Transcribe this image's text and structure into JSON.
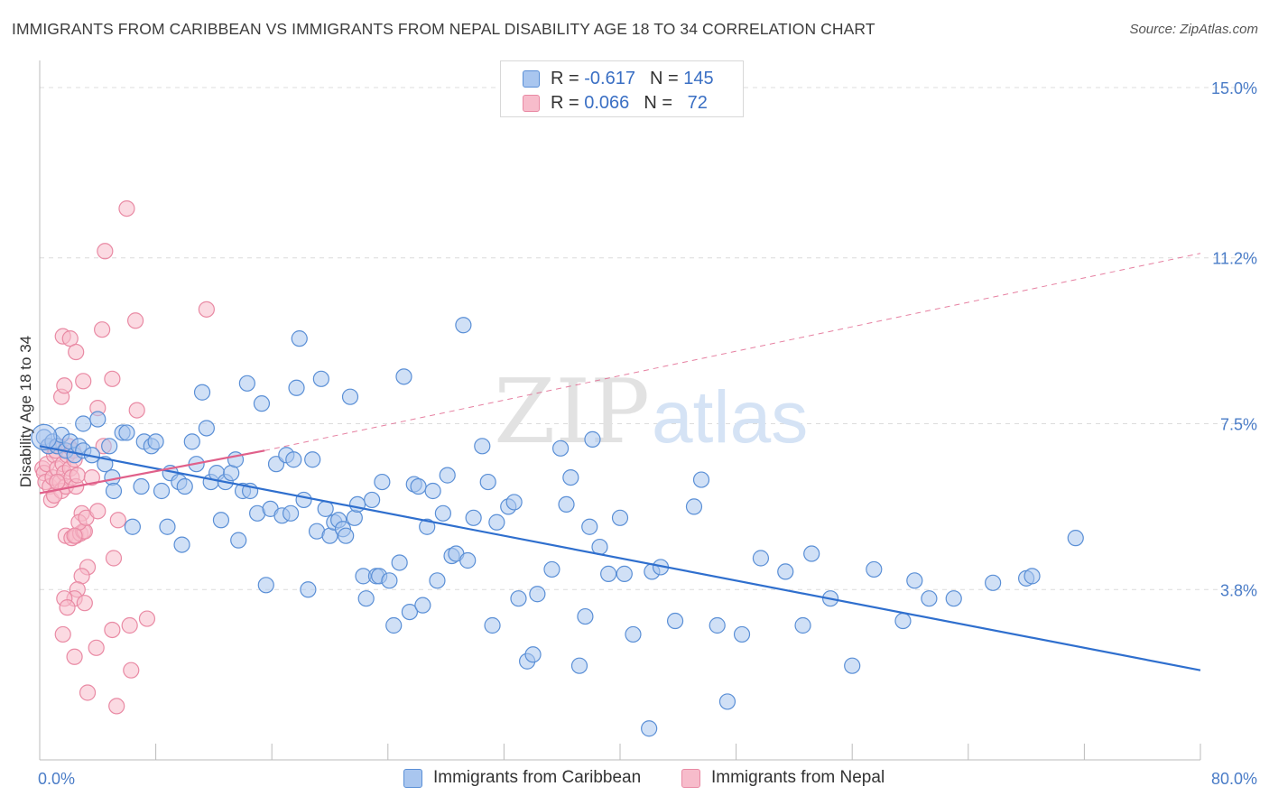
{
  "header": {
    "title": "IMMIGRANTS FROM CARIBBEAN VS IMMIGRANTS FROM NEPAL DISABILITY AGE 18 TO 34 CORRELATION CHART",
    "source": "Source: ZipAtlas.com"
  },
  "watermark": {
    "zip": "ZIP",
    "atlas": "atlas"
  },
  "legend": {
    "caribbean": {
      "r_label": "R =",
      "r_value": "-0.617",
      "n_label": "N =",
      "n_value": "145"
    },
    "nepal": {
      "r_label": "R =",
      "r_value": "0.066",
      "n_label": "N =",
      "n_value": "72"
    }
  },
  "colors": {
    "caribbean_fill": "#a9c6ef",
    "caribbean_stroke": "#5a8fd6",
    "caribbean_line": "#2f6fce",
    "nepal_fill": "#f7bccb",
    "nepal_stroke": "#e98aa4",
    "nepal_line": "#e0608a",
    "tick_text": "#4a7cc7",
    "grid": "#dcdcdc"
  },
  "chart_data": {
    "type": "scatter",
    "title": "IMMIGRANTS FROM CARIBBEAN VS IMMIGRANTS FROM NEPAL DISABILITY AGE 18 TO 34 CORRELATION CHART",
    "xlabel": "",
    "ylabel": "Disability Age 18 to 34",
    "xlim": [
      0,
      80
    ],
    "ylim": [
      0,
      15.6
    ],
    "x_tick_labels": [
      "0.0%",
      "80.0%"
    ],
    "y_ticks": [
      3.8,
      7.5,
      11.2,
      15.0
    ],
    "y_tick_labels": [
      "3.8%",
      "7.5%",
      "11.2%",
      "15.0%"
    ],
    "grid": "horizontal dashed",
    "legend_position": "top-center",
    "series": [
      {
        "name": "Immigrants from Caribbean",
        "R": -0.617,
        "N": 145,
        "trendline": {
          "x": [
            0,
            80
          ],
          "y": [
            7.0,
            2.0
          ],
          "style": "solid"
        },
        "points": [
          [
            0.3,
            7.2
          ],
          [
            0.6,
            7.0
          ],
          [
            0.9,
            7.1
          ],
          [
            1.2,
            7.0
          ],
          [
            1.5,
            7.25
          ],
          [
            1.8,
            6.9
          ],
          [
            2.1,
            7.1
          ],
          [
            2.4,
            6.8
          ],
          [
            2.7,
            7.0
          ],
          [
            3.0,
            6.9
          ],
          [
            3.0,
            7.5
          ],
          [
            3.6,
            6.8
          ],
          [
            4.0,
            7.6
          ],
          [
            4.5,
            6.6
          ],
          [
            4.8,
            7.0
          ],
          [
            5.0,
            6.3
          ],
          [
            5.1,
            6.0
          ],
          [
            5.7,
            7.3
          ],
          [
            6.0,
            7.3
          ],
          [
            6.4,
            5.2
          ],
          [
            7.0,
            6.1
          ],
          [
            7.2,
            7.1
          ],
          [
            7.7,
            7.0
          ],
          [
            8.0,
            7.1
          ],
          [
            8.4,
            6.0
          ],
          [
            8.8,
            5.2
          ],
          [
            9.0,
            6.4
          ],
          [
            9.6,
            6.2
          ],
          [
            9.8,
            4.8
          ],
          [
            10.0,
            6.1
          ],
          [
            10.5,
            7.1
          ],
          [
            10.8,
            6.6
          ],
          [
            11.2,
            8.2
          ],
          [
            11.5,
            7.4
          ],
          [
            11.8,
            6.2
          ],
          [
            12.2,
            6.4
          ],
          [
            12.5,
            5.35
          ],
          [
            12.8,
            6.2
          ],
          [
            13.2,
            6.4
          ],
          [
            13.5,
            6.7
          ],
          [
            13.7,
            4.9
          ],
          [
            14.0,
            6.0
          ],
          [
            14.3,
            8.4
          ],
          [
            14.5,
            6.0
          ],
          [
            15.0,
            5.5
          ],
          [
            15.3,
            7.95
          ],
          [
            15.6,
            3.9
          ],
          [
            15.9,
            5.6
          ],
          [
            16.3,
            6.6
          ],
          [
            16.7,
            5.45
          ],
          [
            17.0,
            6.8
          ],
          [
            17.3,
            5.5
          ],
          [
            17.5,
            6.7
          ],
          [
            17.7,
            8.3
          ],
          [
            17.9,
            9.4
          ],
          [
            18.2,
            5.8
          ],
          [
            18.5,
            3.8
          ],
          [
            18.8,
            6.7
          ],
          [
            19.1,
            5.1
          ],
          [
            19.4,
            8.5
          ],
          [
            19.7,
            5.6
          ],
          [
            20.0,
            5.0
          ],
          [
            20.3,
            5.3
          ],
          [
            20.6,
            5.35
          ],
          [
            20.9,
            5.15
          ],
          [
            21.1,
            5.0
          ],
          [
            21.4,
            8.1
          ],
          [
            21.7,
            5.4
          ],
          [
            21.9,
            5.7
          ],
          [
            22.3,
            4.1
          ],
          [
            22.5,
            3.6
          ],
          [
            22.9,
            5.8
          ],
          [
            23.2,
            4.1
          ],
          [
            23.4,
            4.1
          ],
          [
            23.6,
            6.2
          ],
          [
            24.1,
            4.0
          ],
          [
            24.4,
            3.0
          ],
          [
            24.8,
            4.4
          ],
          [
            25.1,
            8.55
          ],
          [
            25.5,
            3.3
          ],
          [
            25.8,
            6.15
          ],
          [
            26.1,
            6.1
          ],
          [
            26.4,
            3.45
          ],
          [
            26.7,
            5.2
          ],
          [
            27.1,
            6.0
          ],
          [
            27.4,
            4.0
          ],
          [
            27.8,
            5.5
          ],
          [
            28.1,
            6.35
          ],
          [
            28.4,
            4.55
          ],
          [
            28.7,
            4.6
          ],
          [
            29.2,
            9.7
          ],
          [
            29.5,
            4.45
          ],
          [
            29.9,
            5.4
          ],
          [
            30.5,
            7.0
          ],
          [
            30.9,
            6.2
          ],
          [
            31.2,
            3.0
          ],
          [
            31.5,
            5.3
          ],
          [
            32.3,
            5.65
          ],
          [
            32.7,
            5.75
          ],
          [
            33.0,
            3.6
          ],
          [
            33.6,
            2.2
          ],
          [
            34.0,
            2.35
          ],
          [
            34.3,
            3.7
          ],
          [
            35.3,
            4.25
          ],
          [
            35.9,
            6.95
          ],
          [
            36.3,
            5.7
          ],
          [
            36.6,
            6.3
          ],
          [
            37.2,
            2.1
          ],
          [
            37.6,
            3.2
          ],
          [
            37.9,
            5.2
          ],
          [
            38.1,
            7.15
          ],
          [
            38.6,
            4.75
          ],
          [
            39.2,
            4.15
          ],
          [
            40.0,
            5.4
          ],
          [
            40.3,
            4.15
          ],
          [
            40.9,
            2.8
          ],
          [
            42.0,
            0.7
          ],
          [
            42.2,
            4.2
          ],
          [
            42.8,
            4.3
          ],
          [
            43.8,
            3.1
          ],
          [
            45.1,
            5.65
          ],
          [
            45.6,
            6.25
          ],
          [
            46.7,
            3.0
          ],
          [
            47.4,
            1.3
          ],
          [
            48.4,
            2.8
          ],
          [
            49.7,
            4.5
          ],
          [
            51.4,
            4.2
          ],
          [
            52.6,
            3.0
          ],
          [
            53.2,
            4.6
          ],
          [
            54.5,
            3.6
          ],
          [
            56.0,
            2.1
          ],
          [
            57.5,
            4.25
          ],
          [
            59.5,
            3.1
          ],
          [
            60.3,
            4.0
          ],
          [
            61.3,
            3.6
          ],
          [
            63.0,
            3.6
          ],
          [
            65.7,
            3.95
          ],
          [
            68.0,
            4.05
          ],
          [
            68.4,
            4.1
          ],
          [
            71.4,
            4.95
          ]
        ]
      },
      {
        "name": "Immigrants from Nepal",
        "R": 0.066,
        "N": 72,
        "trendline": {
          "x": [
            0,
            15.5
          ],
          "y": [
            5.95,
            6.9
          ],
          "style": "solid",
          "extended": {
            "x": [
              15.5,
              80
            ],
            "y": [
              6.9,
              11.3
            ],
            "style": "dashed"
          }
        },
        "points": [
          [
            0.2,
            6.5
          ],
          [
            0.3,
            6.4
          ],
          [
            0.4,
            6.2
          ],
          [
            0.5,
            6.6
          ],
          [
            0.6,
            7.0
          ],
          [
            0.7,
            6.1
          ],
          [
            0.8,
            5.8
          ],
          [
            0.9,
            6.3
          ],
          [
            1.0,
            6.8
          ],
          [
            1.1,
            6.9
          ],
          [
            1.2,
            6.5
          ],
          [
            1.3,
            7.0
          ],
          [
            1.4,
            6.2
          ],
          [
            1.5,
            6.0
          ],
          [
            1.6,
            6.6
          ],
          [
            1.7,
            6.4
          ],
          [
            1.8,
            6.1
          ],
          [
            1.9,
            6.8
          ],
          [
            2.0,
            7.0
          ],
          [
            2.1,
            6.5
          ],
          [
            2.2,
            6.3
          ],
          [
            2.3,
            6.9
          ],
          [
            2.4,
            6.7
          ],
          [
            2.5,
            6.1
          ],
          [
            2.6,
            6.35
          ],
          [
            1.0,
            5.9
          ],
          [
            1.2,
            6.2
          ],
          [
            1.5,
            8.1
          ],
          [
            1.7,
            8.35
          ],
          [
            1.6,
            9.45
          ],
          [
            2.1,
            9.4
          ],
          [
            2.5,
            9.1
          ],
          [
            3.0,
            8.45
          ],
          [
            1.8,
            5.0
          ],
          [
            2.2,
            4.95
          ],
          [
            2.5,
            5.0
          ],
          [
            2.8,
            5.05
          ],
          [
            2.9,
            5.5
          ],
          [
            3.0,
            5.1
          ],
          [
            3.1,
            5.1
          ],
          [
            2.7,
            5.3
          ],
          [
            3.2,
            5.4
          ],
          [
            2.4,
            5.0
          ],
          [
            3.3,
            4.3
          ],
          [
            2.9,
            4.1
          ],
          [
            2.6,
            3.8
          ],
          [
            2.4,
            3.6
          ],
          [
            1.7,
            3.6
          ],
          [
            1.9,
            3.4
          ],
          [
            3.1,
            3.5
          ],
          [
            1.6,
            2.8
          ],
          [
            2.4,
            2.3
          ],
          [
            3.3,
            1.5
          ],
          [
            4.0,
            5.55
          ],
          [
            3.9,
            2.5
          ],
          [
            3.6,
            6.3
          ],
          [
            4.3,
            9.6
          ],
          [
            4.4,
            7.0
          ],
          [
            4.0,
            7.85
          ],
          [
            4.5,
            11.35
          ],
          [
            5.0,
            2.9
          ],
          [
            5.3,
            1.2
          ],
          [
            5.1,
            4.5
          ],
          [
            5.4,
            5.35
          ],
          [
            5.0,
            8.5
          ],
          [
            6.3,
            2.0
          ],
          [
            6.6,
            9.8
          ],
          [
            6.7,
            7.8
          ],
          [
            6.2,
            3.0
          ],
          [
            7.4,
            3.15
          ],
          [
            6.0,
            12.3
          ],
          [
            11.5,
            10.05
          ]
        ]
      }
    ]
  },
  "bottom_legend": {
    "caribbean": "Immigrants from Caribbean",
    "nepal": "Immigrants from Nepal"
  }
}
